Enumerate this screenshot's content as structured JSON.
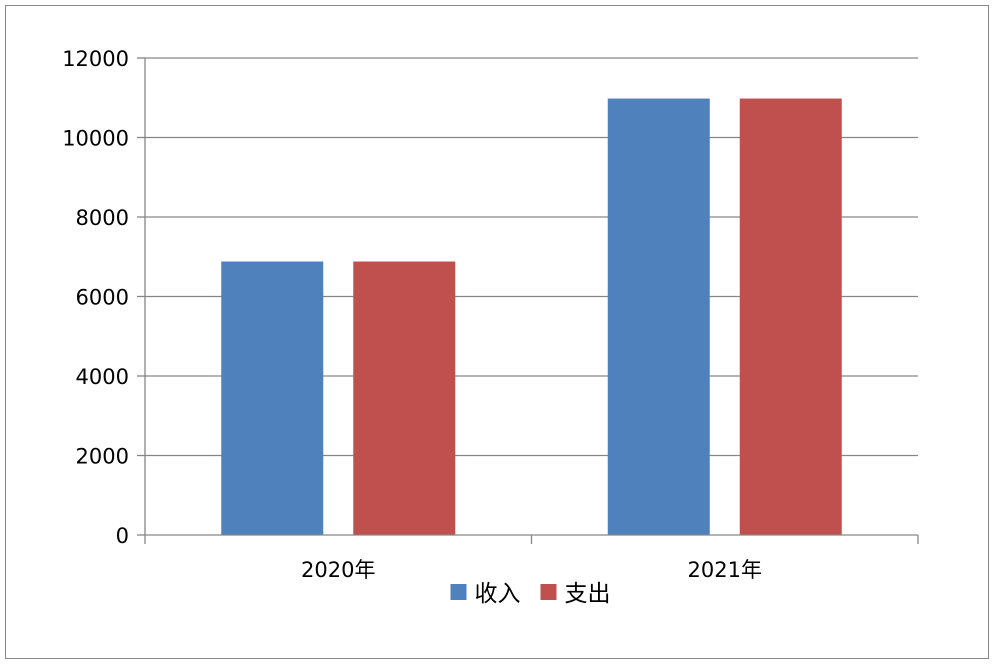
{
  "chart_data": {
    "type": "bar",
    "title": "",
    "xlabel": "",
    "ylabel": "",
    "categories": [
      "2020年",
      "2021年"
    ],
    "series": [
      {
        "name": "收入",
        "values": [
          6880,
          10980
        ],
        "color": "#4F81BD"
      },
      {
        "name": "支出",
        "values": [
          6880,
          10980
        ],
        "color": "#C0504D"
      }
    ],
    "ylim": [
      0,
      12000
    ],
    "yticks": [
      "0",
      "2000",
      "4000",
      "6000",
      "8000",
      "10000",
      "12000"
    ],
    "grid": true,
    "legend_position": "bottom"
  }
}
